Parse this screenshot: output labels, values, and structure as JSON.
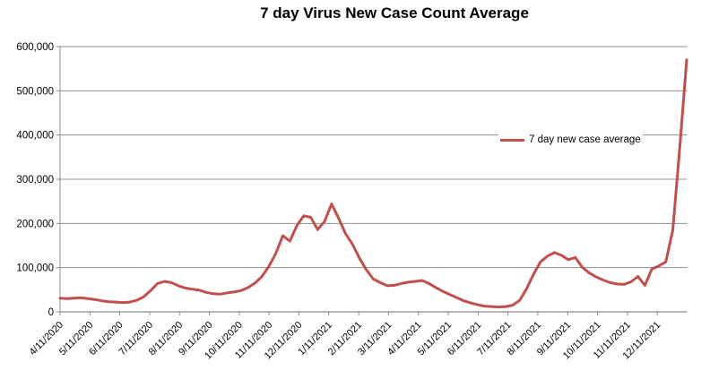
{
  "title": "7 day Virus New Case Count Average",
  "legend": {
    "label": "7 day new case average"
  },
  "colors": {
    "line": "#C0504D",
    "grid": "#8E8E8E",
    "axis": "#8E8E8E",
    "text": "#000000",
    "background": "#FFFFFF"
  },
  "y_axis": {
    "min": 0,
    "max": 600000,
    "tick_labels": [
      "0",
      "100,000",
      "200,000",
      "300,000",
      "400,000",
      "500,000",
      "600,000"
    ]
  },
  "x_axis": {
    "tick_labels": [
      "4/11/2020",
      "5/11/2020",
      "6/11/2020",
      "7/11/2020",
      "8/11/2020",
      "9/11/2020",
      "10/11/2020",
      "11/11/2020",
      "12/11/2020",
      "1/11/2021",
      "2/11/2021",
      "3/11/2021",
      "4/11/2021",
      "5/11/2021",
      "6/11/2021",
      "7/11/2021",
      "8/11/2021",
      "9/11/2021",
      "10/11/2021",
      "11/11/2021",
      "12/11/2021"
    ]
  },
  "chart_data": {
    "type": "line",
    "title": "7 day Virus New Case Count Average",
    "xlabel": "",
    "ylabel": "",
    "ylim": [
      0,
      600000
    ],
    "grid": true,
    "legend_position": "middle-right",
    "x_tick_labels": [
      "4/11/2020",
      "5/11/2020",
      "6/11/2020",
      "7/11/2020",
      "8/11/2020",
      "9/11/2020",
      "10/11/2020",
      "11/11/2020",
      "12/11/2020",
      "1/11/2021",
      "2/11/2021",
      "3/11/2021",
      "4/11/2021",
      "5/11/2021",
      "6/11/2021",
      "7/11/2021",
      "8/11/2021",
      "9/11/2021",
      "10/11/2021",
      "11/11/2021",
      "12/11/2021"
    ],
    "x": [
      "4/11/2020",
      "4/18/2020",
      "4/25/2020",
      "5/2/2020",
      "5/9/2020",
      "5/16/2020",
      "5/23/2020",
      "5/30/2020",
      "6/6/2020",
      "6/13/2020",
      "6/20/2020",
      "6/27/2020",
      "7/4/2020",
      "7/11/2020",
      "7/18/2020",
      "7/25/2020",
      "8/1/2020",
      "8/8/2020",
      "8/15/2020",
      "8/22/2020",
      "8/29/2020",
      "9/5/2020",
      "9/12/2020",
      "9/19/2020",
      "9/26/2020",
      "10/3/2020",
      "10/10/2020",
      "10/17/2020",
      "10/24/2020",
      "10/31/2020",
      "11/7/2020",
      "11/14/2020",
      "11/21/2020",
      "11/28/2020",
      "12/5/2020",
      "12/12/2020",
      "12/19/2020",
      "12/26/2020",
      "1/2/2021",
      "1/9/2021",
      "1/16/2021",
      "1/23/2021",
      "1/30/2021",
      "2/6/2021",
      "2/13/2021",
      "2/20/2021",
      "2/27/2021",
      "3/6/2021",
      "3/13/2021",
      "3/20/2021",
      "3/27/2021",
      "4/3/2021",
      "4/10/2021",
      "4/17/2021",
      "4/24/2021",
      "5/1/2021",
      "5/8/2021",
      "5/15/2021",
      "5/22/2021",
      "5/29/2021",
      "6/5/2021",
      "6/12/2021",
      "6/19/2021",
      "6/26/2021",
      "7/3/2021",
      "7/10/2021",
      "7/17/2021",
      "7/24/2021",
      "7/31/2021",
      "8/7/2021",
      "8/14/2021",
      "8/21/2021",
      "8/28/2021",
      "9/4/2021",
      "9/11/2021",
      "9/18/2021",
      "9/25/2021",
      "10/2/2021",
      "10/9/2021",
      "10/16/2021",
      "10/23/2021",
      "10/30/2021",
      "11/6/2021",
      "11/13/2021",
      "11/20/2021",
      "11/27/2021",
      "12/4/2021",
      "12/11/2021",
      "12/18/2021",
      "12/25/2021",
      "1/1/2022"
    ],
    "series": [
      {
        "name": "7 day new case average",
        "color": "#C0504D",
        "values": [
          31000,
          30000,
          31000,
          32000,
          30000,
          28000,
          25000,
          23000,
          22000,
          21000,
          22000,
          26000,
          34000,
          48000,
          64000,
          69000,
          66000,
          59000,
          54000,
          51000,
          49000,
          44000,
          41000,
          40000,
          43000,
          45000,
          48000,
          55000,
          65000,
          80000,
          103000,
          133000,
          172000,
          160000,
          195000,
          217000,
          214000,
          186000,
          205000,
          244000,
          212000,
          177000,
          153000,
          121000,
          95000,
          74000,
          66000,
          59000,
          60000,
          64000,
          67000,
          69000,
          71000,
          64000,
          55000,
          46000,
          39000,
          32000,
          25000,
          20000,
          16000,
          13000,
          12000,
          11000,
          12000,
          15000,
          26000,
          52000,
          85000,
          113000,
          126000,
          134000,
          128000,
          118000,
          123000,
          101000,
          88000,
          79000,
          72000,
          66000,
          63000,
          62000,
          68000,
          80000,
          60000,
          97000,
          104000,
          113000,
          185000,
          370000,
          570000
        ]
      }
    ]
  }
}
